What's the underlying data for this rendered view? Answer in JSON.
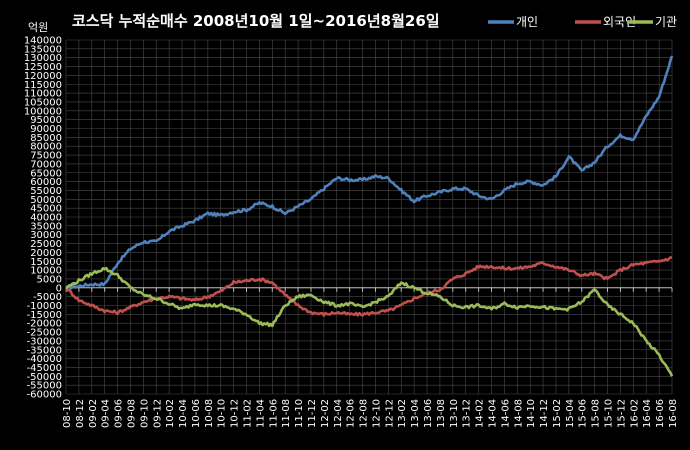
{
  "chart_data": {
    "type": "line",
    "title": "코스닥  누적순매수 2008년10월 1일~2016년8월26일",
    "unit_label": "억원",
    "ylim": [
      -60000,
      140000
    ],
    "ytick_step": 5000,
    "grid": true,
    "legend_position": "top-right",
    "categories": [
      "08-10",
      "08-12",
      "09-02",
      "09-04",
      "09-06",
      "09-08",
      "09-10",
      "09-12",
      "10-02",
      "10-04",
      "10-06",
      "10-08",
      "10-10",
      "10-12",
      "11-02",
      "11-04",
      "11-06",
      "11-08",
      "11-10",
      "11-12",
      "12-02",
      "12-04",
      "12-06",
      "12-08",
      "12-10",
      "12-12",
      "13-02",
      "13-04",
      "13-06",
      "13-08",
      "13-10",
      "13-12",
      "14-02",
      "14-04",
      "14-06",
      "14-08",
      "14-10",
      "14-12",
      "15-02",
      "15-04",
      "15-06",
      "15-08",
      "15-10",
      "15-12",
      "16-02",
      "16-04",
      "16-06",
      "16-08"
    ],
    "series": [
      {
        "name": "개인",
        "color": "#4f81bd",
        "values": [
          0,
          1000,
          2000,
          2000,
          14000,
          22000,
          26000,
          26000,
          32000,
          35000,
          38000,
          42000,
          41000,
          43000,
          44000,
          48000,
          46000,
          42000,
          46000,
          50000,
          56000,
          62000,
          61000,
          61000,
          63000,
          62000,
          55000,
          49000,
          52000,
          54000,
          56000,
          56000,
          52000,
          50000,
          55000,
          59000,
          60000,
          58000,
          63000,
          74000,
          66000,
          71000,
          80000,
          86000,
          84000,
          97000,
          108000,
          131000
        ]
      },
      {
        "name": "외국인",
        "color": "#c0504d",
        "values": [
          0,
          -7000,
          -10000,
          -13000,
          -14000,
          -11000,
          -8000,
          -6000,
          -5000,
          -6000,
          -7000,
          -5000,
          -2000,
          3000,
          4000,
          5000,
          3000,
          -4000,
          -10000,
          -14000,
          -15000,
          -14000,
          -15000,
          -15000,
          -14000,
          -13000,
          -10000,
          -6000,
          -3000,
          -1000,
          5000,
          8000,
          12000,
          12000,
          11000,
          11000,
          12000,
          14000,
          12000,
          10000,
          7000,
          8000,
          5000,
          10000,
          13000,
          14000,
          15000,
          17000
        ]
      },
      {
        "name": "기관",
        "color": "#9bbb59",
        "values": [
          0,
          4000,
          8000,
          11000,
          7000,
          0,
          -4000,
          -6000,
          -9000,
          -12000,
          -9000,
          -10000,
          -10000,
          -12000,
          -15000,
          -20000,
          -21000,
          -10000,
          -5000,
          -4000,
          -8000,
          -10000,
          -9000,
          -11000,
          -8000,
          -5000,
          3000,
          0,
          -3000,
          -5000,
          -10000,
          -11000,
          -10000,
          -12000,
          -9000,
          -11000,
          -10000,
          -11000,
          -12000,
          -12000,
          -8000,
          -1000,
          -10000,
          -15000,
          -20000,
          -30000,
          -38000,
          -50000
        ]
      }
    ]
  }
}
